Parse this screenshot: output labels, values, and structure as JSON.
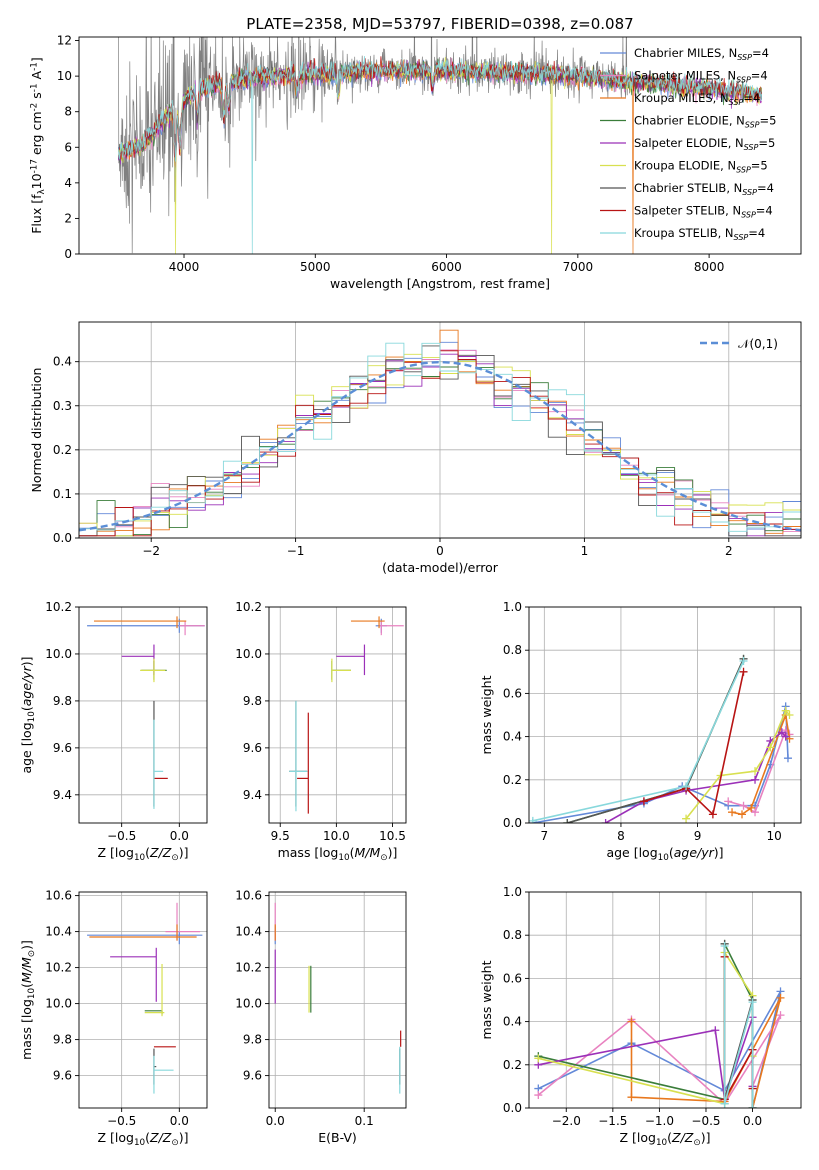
{
  "figure_title": "PLATE=2358, MJD=53797, FIBERID=0398, z=0.087",
  "model_names": [
    "Chabrier MILES",
    "Salpeter MILES",
    "Kroupa MILES",
    "Chabrier ELODIE",
    "Salpeter ELODIE",
    "Kroupa ELODIE",
    "Chabrier STELIB",
    "Salpeter STELIB",
    "Kroupa STELIB"
  ],
  "model_colors": [
    "#6389d8",
    "#e882c0",
    "#e8781e",
    "#3a7d3a",
    "#9b30b8",
    "#d8e050",
    "#555555",
    "#b81414",
    "#88d8dc"
  ],
  "spectrum_color": "#808080",
  "chart_data": [
    {
      "type": "line",
      "id": "spectrum",
      "xlabel": "wavelength [Angstrom, rest frame]",
      "ylabel": "Flux [f$_\\lambda$10$^{-17}$ erg cm$^{-2}$ s$^{-1}$ A$^{-1}$]",
      "xlim": [
        3200,
        8700
      ],
      "ylim": [
        0,
        12.2
      ],
      "xticks": [
        4000,
        5000,
        6000,
        7000,
        8000
      ],
      "yticks": [
        0,
        2,
        4,
        6,
        8,
        10,
        12
      ],
      "legend": [
        "Chabrier MILES, N$_{SSP}$=4",
        "Salpeter MILES, N$_{SSP}$=4",
        "Kroupa MILES, N$_{SSP}$=4",
        "Chabrier ELODIE, N$_{SSP}$=5",
        "Salpeter ELODIE, N$_{SSP}$=5",
        "Kroupa ELODIE, N$_{SSP}$=5",
        "Chabrier STELIB, N$_{SSP}$=4",
        "Salpeter STELIB, N$_{SSP}$=4",
        "Kroupa STELIB, N$_{SSP}$=4"
      ],
      "legend_placement": "right",
      "continuum": {
        "x": [
          3500,
          3700,
          3900,
          4100,
          4300,
          4600,
          5000,
          5500,
          6000,
          6500,
          7000,
          7500,
          8000,
          8400
        ],
        "y": [
          5.6,
          6.2,
          8.0,
          9.2,
          9.6,
          10.0,
          10.1,
          10.3,
          10.3,
          10.2,
          10.0,
          9.6,
          9.3,
          8.9
        ]
      },
      "absorption_features": [
        {
          "x": 3934,
          "depth": 3.0,
          "label": ""
        },
        {
          "x": 3969,
          "depth": 2.5,
          "label": ""
        },
        {
          "x": 4102,
          "depth": 1.5,
          "label": ""
        },
        {
          "x": 4304,
          "depth": 2.0,
          "label": ""
        },
        {
          "x": 4341,
          "depth": 1.5,
          "label": ""
        },
        {
          "x": 4861,
          "depth": 1.0,
          "label": ""
        },
        {
          "x": 5175,
          "depth": 1.2,
          "label": ""
        },
        {
          "x": 5893,
          "depth": 1.0,
          "label": ""
        }
      ],
      "model_dropouts": [
        {
          "x": 3936,
          "model": 5,
          "to": 0
        },
        {
          "x": 4520,
          "model": 8,
          "to": 0
        },
        {
          "x": 6800,
          "model": 5,
          "to": 0
        },
        {
          "x": 7420,
          "model": 2,
          "to": 0
        }
      ],
      "spectrum_range": [
        3500,
        7400
      ],
      "model_range": [
        3500,
        8400
      ],
      "grid": false
    },
    {
      "type": "histogram",
      "id": "residuals",
      "xlabel": "(data-model)/error",
      "ylabel": "Normed distribution",
      "xlim": [
        -2.5,
        2.5
      ],
      "ylim": [
        0,
        0.49
      ],
      "xticks": [
        -2,
        -1,
        0,
        1,
        2
      ],
      "yticks": [
        0,
        0.1,
        0.2,
        0.3,
        0.4
      ],
      "bin_width": 0.125,
      "reference_curve": {
        "name": "$\\mathcal{N}(0,1)$",
        "mean": 0,
        "sigma": 1
      },
      "legend": [
        "$\\mathcal{N}(0,1)$"
      ],
      "legend_placement": "top-right",
      "grid": true
    },
    {
      "type": "scatter",
      "id": "age-vs-Z",
      "xlabel": "Z [log$_{10}$($Z/Z_\\odot$)]",
      "ylabel": "age  [log$_{10}$($age/yr$)]",
      "xlim": [
        -0.87,
        0.24
      ],
      "ylim": [
        9.28,
        10.2
      ],
      "xticks": [
        -0.5,
        0.0
      ],
      "yticks": [
        9.4,
        9.6,
        9.8,
        10.0,
        10.2
      ],
      "grid": true,
      "points": [
        {
          "model": 0,
          "x": 0.0,
          "xerr": [
            0.8,
            0.22
          ],
          "y": 10.12,
          "yerr": [
            0.03,
            0.03
          ]
        },
        {
          "model": 1,
          "x": 0.05,
          "xerr": [
            0.05,
            0.17
          ],
          "y": 10.12,
          "yerr": [
            0.04,
            0.02
          ]
        },
        {
          "model": 2,
          "x": -0.02,
          "xerr": [
            0.72,
            0.08
          ],
          "y": 10.14,
          "yerr": [
            0.03,
            0.02
          ]
        },
        {
          "model": 3,
          "x": -0.22,
          "xerr": [
            0.11,
            0.11
          ],
          "y": 9.93,
          "yerr": [
            0.04,
            0.04
          ]
        },
        {
          "model": 4,
          "x": -0.22,
          "xerr": [
            0.28,
            0.0
          ],
          "y": 9.99,
          "yerr": [
            0.08,
            0.05
          ]
        },
        {
          "model": 5,
          "x": -0.22,
          "xerr": [
            0.12,
            0.1
          ],
          "y": 9.93,
          "yerr": [
            0.05,
            0.05
          ]
        },
        {
          "model": 6,
          "x": -0.22,
          "xerr": [
            0.0,
            0.0
          ],
          "y": 9.5,
          "yerr": [
            0.15,
            0.3
          ]
        },
        {
          "model": 7,
          "x": -0.2,
          "xerr": [
            0.02,
            0.1
          ],
          "y": 9.47,
          "yerr": [
            0.0,
            0.0
          ]
        },
        {
          "model": 8,
          "x": -0.22,
          "xerr": [
            0.0,
            0.08
          ],
          "y": 9.5,
          "yerr": [
            0.16,
            0.22
          ]
        }
      ]
    },
    {
      "type": "scatter",
      "id": "age-vs-mass",
      "xlabel": "mass [log$_{10}$($M/M_\\odot$)]",
      "ylabel": "",
      "xlim": [
        9.4,
        10.62
      ],
      "ylim": [
        9.28,
        10.2
      ],
      "xticks": [
        9.5,
        10.0,
        10.5
      ],
      "yticks": [
        9.4,
        9.6,
        9.8,
        10.0,
        10.2
      ],
      "grid": true,
      "points": [
        {
          "model": 0,
          "x": 10.4,
          "xerr": [
            0.05,
            0.05
          ],
          "y": 10.12,
          "yerr": [
            0.03,
            0.03
          ]
        },
        {
          "model": 1,
          "x": 10.4,
          "xerr": [
            0.02,
            0.2
          ],
          "y": 10.12,
          "yerr": [
            0.04,
            0.02
          ]
        },
        {
          "model": 2,
          "x": 10.38,
          "xerr": [
            0.25,
            0.05
          ],
          "y": 10.14,
          "yerr": [
            0.03,
            0.02
          ]
        },
        {
          "model": 3,
          "x": 9.96,
          "xerr": [
            0.0,
            0.17
          ],
          "y": 9.93,
          "yerr": [
            0.04,
            0.04
          ]
        },
        {
          "model": 4,
          "x": 10.25,
          "xerr": [
            0.25,
            0.0
          ],
          "y": 9.99,
          "yerr": [
            0.08,
            0.05
          ]
        },
        {
          "model": 5,
          "x": 9.96,
          "xerr": [
            0.0,
            0.17
          ],
          "y": 9.93,
          "yerr": [
            0.05,
            0.05
          ]
        },
        {
          "model": 6,
          "x": 9.64,
          "xerr": [
            0.06,
            0.1
          ],
          "y": 9.5,
          "yerr": [
            0.15,
            0.3
          ]
        },
        {
          "model": 7,
          "x": 9.75,
          "xerr": [
            0.1,
            0.0
          ],
          "y": 9.47,
          "yerr": [
            0.15,
            0.28
          ]
        },
        {
          "model": 8,
          "x": 9.64,
          "xerr": [
            0.06,
            0.1
          ],
          "y": 9.5,
          "yerr": [
            0.17,
            0.3
          ]
        }
      ]
    },
    {
      "type": "line",
      "id": "massweight-vs-age",
      "xlabel": "age  [log$_{10}$($age/yr$)]",
      "ylabel": "mass weight",
      "xlim": [
        6.8,
        10.35
      ],
      "ylim": [
        0,
        1.0
      ],
      "xticks": [
        7,
        8,
        9,
        10
      ],
      "yticks": [
        0.0,
        0.2,
        0.4,
        0.6,
        0.8,
        1.0
      ],
      "grid": true,
      "series": [
        {
          "model": 0,
          "x": [
            6.85,
            8.3,
            8.8,
            9.4,
            9.75,
            9.95,
            10.15,
            10.18
          ],
          "y": [
            0.0,
            0.09,
            0.17,
            0.08,
            0.08,
            0.27,
            0.54,
            0.3
          ]
        },
        {
          "model": 1,
          "x": [
            9.4,
            9.6,
            9.75,
            10.15,
            10.2
          ],
          "y": [
            0.1,
            0.08,
            0.05,
            0.43,
            0.41
          ]
        },
        {
          "model": 2,
          "x": [
            9.45,
            9.58,
            9.7,
            10.15,
            10.2
          ],
          "y": [
            0.05,
            0.04,
            0.07,
            0.5,
            0.39
          ]
        },
        {
          "model": 3,
          "x": [
            7.3,
            8.85,
            9.6
          ],
          "y": [
            0.0,
            0.16,
            0.76
          ]
        },
        {
          "model": 4,
          "x": [
            7.8,
            8.3,
            8.85,
            9.75,
            9.95,
            10.1,
            10.15
          ],
          "y": [
            0.0,
            0.1,
            0.15,
            0.2,
            0.38,
            0.42,
            0.4
          ]
        },
        {
          "model": 5,
          "x": [
            8.85,
            9.3,
            9.75,
            9.95,
            10.15,
            10.2
          ],
          "y": [
            0.02,
            0.22,
            0.24,
            0.35,
            0.52,
            0.5
          ]
        },
        {
          "model": 6,
          "x": [
            7.3,
            8.85,
            9.6
          ],
          "y": [
            0.0,
            0.16,
            0.76
          ]
        },
        {
          "model": 7,
          "x": [
            8.3,
            8.85,
            9.2,
            9.6
          ],
          "y": [
            0.1,
            0.16,
            0.04,
            0.7
          ]
        },
        {
          "model": 8,
          "x": [
            6.85,
            8.85,
            9.6
          ],
          "y": [
            0.01,
            0.17,
            0.75
          ]
        }
      ]
    },
    {
      "type": "scatter",
      "id": "mass-vs-Z",
      "xlabel": "Z [log$_{10}$($Z/Z_\\odot$)]",
      "ylabel": "mass [log$_{10}$($M/M_\\odot$)]",
      "xlim": [
        -0.87,
        0.24
      ],
      "ylim": [
        9.42,
        10.62
      ],
      "xticks": [
        -0.5,
        0.0
      ],
      "yticks": [
        9.6,
        9.8,
        10.0,
        10.2,
        10.4,
        10.6
      ],
      "grid": true,
      "points": [
        {
          "model": 0,
          "x": 0.0,
          "xerr": [
            0.8,
            0.2
          ],
          "y": 10.38,
          "yerr": [
            0.05,
            0.02
          ]
        },
        {
          "model": 1,
          "x": -0.02,
          "xerr": [
            0.1,
            0.2
          ],
          "y": 10.4,
          "yerr": [
            0.05,
            0.16
          ]
        },
        {
          "model": 2,
          "x": -0.02,
          "xerr": [
            0.76,
            0.17
          ],
          "y": 10.37,
          "yerr": [
            0.02,
            0.07
          ]
        },
        {
          "model": 3,
          "x": -0.15,
          "xerr": [
            0.15,
            0.0
          ],
          "y": 9.96,
          "yerr": [
            0.02,
            0.0
          ]
        },
        {
          "model": 4,
          "x": -0.2,
          "xerr": [
            0.4,
            0.0
          ],
          "y": 10.26,
          "yerr": [
            0.25,
            0.05
          ]
        },
        {
          "model": 5,
          "x": -0.15,
          "xerr": [
            0.15,
            0.02
          ],
          "y": 9.95,
          "yerr": [
            0.02,
            0.27
          ]
        },
        {
          "model": 6,
          "x": -0.22,
          "xerr": [
            0.0,
            0.02
          ],
          "y": 9.65,
          "yerr": [
            0.1,
            0.1
          ]
        },
        {
          "model": 7,
          "x": -0.2,
          "xerr": [
            0.02,
            0.17
          ],
          "y": 9.76,
          "yerr": [
            0.0,
            0.0
          ]
        },
        {
          "model": 8,
          "x": -0.22,
          "xerr": [
            0.0,
            0.17
          ],
          "y": 9.63,
          "yerr": [
            0.13,
            0.08
          ]
        }
      ]
    },
    {
      "type": "scatter",
      "id": "mass-vs-ebv",
      "xlabel": "E(B-V)",
      "ylabel": "",
      "xlim": [
        -0.007,
        0.147
      ],
      "ylim": [
        9.42,
        10.62
      ],
      "xticks": [
        0.0,
        0.1
      ],
      "yticks": [
        9.6,
        9.8,
        10.0,
        10.2,
        10.4,
        10.6
      ],
      "grid": true,
      "points": [
        {
          "model": 0,
          "x": 0.0,
          "xerr": [
            0.0,
            0.0
          ],
          "y": 10.38,
          "yerr": [
            0.05,
            0.05
          ]
        },
        {
          "model": 1,
          "x": 0.0,
          "xerr": [
            0.0,
            0.0
          ],
          "y": 10.4,
          "yerr": [
            0.05,
            0.16
          ]
        },
        {
          "model": 2,
          "x": 0.0,
          "xerr": [
            0.0,
            0.0
          ],
          "y": 10.37,
          "yerr": [
            0.02,
            0.07
          ]
        },
        {
          "model": 3,
          "x": 0.04,
          "xerr": [
            0.0,
            0.0
          ],
          "y": 10.08,
          "yerr": [
            0.13,
            0.13
          ]
        },
        {
          "model": 4,
          "x": 0.0,
          "xerr": [
            0.0,
            0.0
          ],
          "y": 10.15,
          "yerr": [
            0.15,
            0.15
          ]
        },
        {
          "model": 5,
          "x": 0.038,
          "xerr": [
            0.0,
            0.0
          ],
          "y": 10.08,
          "yerr": [
            0.13,
            0.13
          ]
        },
        {
          "model": 6,
          "x": 0.14,
          "xerr": [
            0.0,
            0.0
          ],
          "y": 9.65,
          "yerr": [
            0.1,
            0.1
          ]
        },
        {
          "model": 7,
          "x": 0.141,
          "xerr": [
            0.0,
            0.0
          ],
          "y": 9.76,
          "yerr": [
            0.0,
            0.09
          ]
        },
        {
          "model": 8,
          "x": 0.14,
          "xerr": [
            0.0,
            0.0
          ],
          "y": 9.63,
          "yerr": [
            0.13,
            0.13
          ]
        }
      ]
    },
    {
      "type": "line",
      "id": "massweight-vs-Z",
      "xlabel": "Z [log$_{10}$($Z/Z_\\odot$)]",
      "ylabel": "mass weight",
      "xlim": [
        -2.4,
        0.52
      ],
      "ylim": [
        0,
        1.0
      ],
      "xticks": [
        -2.0,
        -1.5,
        -1.0,
        -0.5,
        0.0
      ],
      "yticks": [
        0.0,
        0.2,
        0.4,
        0.6,
        0.8,
        1.0
      ],
      "grid": true,
      "series": [
        {
          "model": 0,
          "x": [
            -2.3,
            -1.3,
            -0.3,
            0.3,
            0.0
          ],
          "y": [
            0.09,
            0.3,
            0.08,
            0.54,
            0.0
          ]
        },
        {
          "model": 1,
          "x": [
            -2.3,
            -1.3,
            -0.3,
            0.3,
            0.0
          ],
          "y": [
            0.06,
            0.41,
            0.02,
            0.43,
            0.1
          ]
        },
        {
          "model": 2,
          "x": [
            -1.3,
            -1.3,
            -0.3,
            0.3,
            0.0
          ],
          "y": [
            0.4,
            0.05,
            0.03,
            0.51,
            0.0
          ]
        },
        {
          "model": 3,
          "x": [
            -2.3,
            -0.3,
            -0.3,
            0.0,
            0.0
          ],
          "y": [
            0.24,
            0.04,
            0.76,
            0.5,
            0.0
          ]
        },
        {
          "model": 4,
          "x": [
            -2.3,
            -0.4,
            -0.3,
            0.0,
            0.0
          ],
          "y": [
            0.2,
            0.36,
            0.04,
            0.42,
            0.1
          ]
        },
        {
          "model": 5,
          "x": [
            -2.3,
            -0.3,
            -0.3,
            0.0,
            0.0
          ],
          "y": [
            0.23,
            0.02,
            0.72,
            0.52,
            0.24
          ]
        },
        {
          "model": 6,
          "x": [
            -0.3,
            -0.3,
            0.0,
            0.0
          ],
          "y": [
            0.76,
            0.04,
            0.5,
            0.0
          ]
        },
        {
          "model": 7,
          "x": [
            -0.3,
            -0.3,
            0.0,
            0.0
          ],
          "y": [
            0.7,
            0.04,
            0.27,
            0.09
          ]
        },
        {
          "model": 8,
          "x": [
            -0.3,
            -0.3,
            0.0,
            0.0
          ],
          "y": [
            0.75,
            0.02,
            0.49,
            0.0
          ]
        }
      ]
    }
  ]
}
